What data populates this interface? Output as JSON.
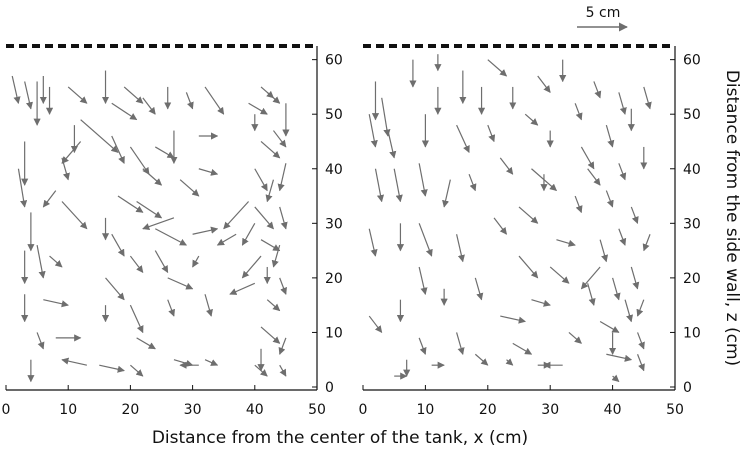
{
  "colors": {
    "arrow": "#6e6e6e",
    "axis": "#111111",
    "wall": "#111111"
  },
  "chart_data": [
    {
      "type": "quiver",
      "panel": "left",
      "xlabel": "",
      "ylabel": "",
      "xlim": [
        0,
        50
      ],
      "ylim": [
        0,
        63
      ],
      "xticks": [
        0,
        10,
        20,
        30,
        40,
        50
      ],
      "yticks": [
        0,
        10,
        20,
        30,
        40,
        50,
        60
      ],
      "wall_z": 62.5,
      "arrows": [
        [
          1,
          57,
          2,
          52
        ],
        [
          3,
          56,
          4,
          51
        ],
        [
          3,
          45,
          3,
          37
        ],
        [
          5,
          56,
          5,
          48
        ],
        [
          6,
          57,
          6,
          52
        ],
        [
          7,
          55,
          7,
          50
        ],
        [
          2,
          40,
          3,
          33
        ],
        [
          4,
          32,
          4,
          25
        ],
        [
          3,
          25,
          3,
          19
        ],
        [
          3,
          17,
          3,
          12
        ],
        [
          4,
          5,
          4,
          1
        ],
        [
          5,
          26,
          6,
          20
        ],
        [
          5,
          10,
          6,
          7
        ],
        [
          8,
          9,
          12,
          9
        ],
        [
          6,
          16,
          10,
          15
        ],
        [
          7,
          24,
          9,
          22
        ],
        [
          9,
          42,
          10,
          38
        ],
        [
          9,
          34,
          13,
          29
        ],
        [
          8,
          36,
          6,
          33
        ],
        [
          11,
          48,
          11,
          43
        ],
        [
          10,
          55,
          13,
          52
        ],
        [
          12,
          49,
          18,
          43
        ],
        [
          12,
          45,
          9,
          41
        ],
        [
          16,
          58,
          16,
          52
        ],
        [
          17,
          46,
          19,
          41
        ],
        [
          18,
          35,
          22,
          32
        ],
        [
          17,
          28,
          19,
          24
        ],
        [
          16,
          20,
          19,
          16
        ],
        [
          16,
          15,
          16,
          12
        ],
        [
          15,
          4,
          19,
          3
        ],
        [
          13,
          4,
          9,
          5
        ],
        [
          16,
          31,
          16,
          27
        ],
        [
          17,
          52,
          21,
          49
        ],
        [
          19,
          55,
          22,
          52
        ],
        [
          20,
          44,
          23,
          39
        ],
        [
          21,
          34,
          25,
          31
        ],
        [
          20,
          24,
          22,
          21
        ],
        [
          20,
          15,
          22,
          10
        ],
        [
          20,
          4,
          22,
          2
        ],
        [
          21,
          9,
          24,
          7
        ],
        [
          22,
          40,
          25,
          37
        ],
        [
          24,
          44,
          27,
          42
        ],
        [
          22,
          53,
          24,
          50
        ],
        [
          26,
          55,
          26,
          51
        ],
        [
          24,
          25,
          26,
          21
        ],
        [
          24,
          29,
          29,
          26
        ],
        [
          26,
          20,
          30,
          18
        ],
        [
          27,
          31,
          22,
          29
        ],
        [
          26,
          16,
          27,
          13
        ],
        [
          27,
          47,
          27,
          41
        ],
        [
          28,
          38,
          31,
          35
        ],
        [
          27,
          5,
          30,
          4
        ],
        [
          29,
          54,
          30,
          51
        ],
        [
          30,
          28,
          34,
          29
        ],
        [
          31,
          24,
          30,
          22
        ],
        [
          31,
          46,
          34,
          46
        ],
        [
          32,
          55,
          35,
          50
        ],
        [
          31,
          40,
          34,
          39
        ],
        [
          32,
          17,
          33,
          13
        ],
        [
          32,
          5,
          34,
          4
        ],
        [
          31,
          4,
          28,
          4
        ],
        [
          37,
          28,
          34,
          26
        ],
        [
          39,
          34,
          35,
          29
        ],
        [
          40,
          30,
          38,
          26
        ],
        [
          41,
          24,
          38,
          20
        ],
        [
          40,
          19,
          36,
          17
        ],
        [
          41,
          55,
          43,
          53
        ],
        [
          42,
          54,
          44,
          52
        ],
        [
          40,
          50,
          40,
          47
        ],
        [
          41,
          45,
          44,
          42
        ],
        [
          40,
          40,
          42,
          36
        ],
        [
          40,
          33,
          43,
          29
        ],
        [
          41,
          27,
          44,
          25
        ],
        [
          42,
          22,
          42,
          19
        ],
        [
          42,
          16,
          44,
          14
        ],
        [
          41,
          11,
          44,
          8
        ],
        [
          40,
          4,
          42,
          2
        ],
        [
          43,
          47,
          45,
          44
        ],
        [
          45,
          52,
          45,
          46
        ],
        [
          45,
          41,
          44,
          36
        ],
        [
          44,
          33,
          45,
          29
        ],
        [
          44,
          26,
          43,
          22
        ],
        [
          44,
          20,
          45,
          17
        ],
        [
          45,
          9,
          44,
          6
        ],
        [
          44,
          4,
          45,
          2
        ],
        [
          39,
          52,
          42,
          50
        ],
        [
          43,
          38,
          42,
          34
        ],
        [
          41,
          7,
          41,
          3
        ]
      ]
    },
    {
      "type": "quiver",
      "panel": "right",
      "xlabel": "Distance from the center of the tank, x (cm)",
      "ylabel": "Distance from the side wall, z (cm)",
      "xlim": [
        0,
        50
      ],
      "ylim": [
        0,
        63
      ],
      "xticks": [
        0,
        10,
        20,
        30,
        40,
        50
      ],
      "yticks": [
        0,
        10,
        20,
        30,
        40,
        50,
        60
      ],
      "wall_z": 62.5,
      "scale_label": "5 cm",
      "scale_length": 5,
      "arrows": [
        [
          1,
          50,
          2,
          44
        ],
        [
          2,
          56,
          2,
          49
        ],
        [
          3,
          53,
          4,
          46
        ],
        [
          2,
          40,
          3,
          34
        ],
        [
          1,
          29,
          2,
          24
        ],
        [
          1,
          13,
          3,
          10
        ],
        [
          4,
          47,
          5,
          42
        ],
        [
          5,
          40,
          6,
          34
        ],
        [
          6,
          30,
          6,
          25
        ],
        [
          6,
          16,
          6,
          12
        ],
        [
          7,
          5,
          7,
          2
        ],
        [
          8,
          60,
          8,
          55
        ],
        [
          9,
          41,
          10,
          35
        ],
        [
          9,
          30,
          11,
          24
        ],
        [
          9,
          22,
          10,
          17
        ],
        [
          9,
          9,
          10,
          6
        ],
        [
          5,
          2,
          7,
          2
        ],
        [
          10,
          50,
          10,
          44
        ],
        [
          11,
          4,
          13,
          4
        ],
        [
          12,
          55,
          12,
          50
        ],
        [
          12,
          61,
          12,
          58
        ],
        [
          13,
          18,
          13,
          15
        ],
        [
          14,
          38,
          13,
          33
        ],
        [
          15,
          48,
          17,
          43
        ],
        [
          15,
          28,
          16,
          23
        ],
        [
          15,
          10,
          16,
          6
        ],
        [
          16,
          58,
          16,
          52
        ],
        [
          17,
          39,
          18,
          36
        ],
        [
          18,
          20,
          19,
          16
        ],
        [
          18,
          6,
          20,
          4
        ],
        [
          19,
          55,
          19,
          50
        ],
        [
          20,
          48,
          21,
          45
        ],
        [
          21,
          31,
          23,
          28
        ],
        [
          22,
          42,
          24,
          39
        ],
        [
          22,
          13,
          26,
          12
        ],
        [
          23,
          5,
          24,
          4
        ],
        [
          24,
          55,
          24,
          51
        ],
        [
          25,
          24,
          28,
          20
        ],
        [
          25,
          33,
          28,
          30
        ],
        [
          26,
          50,
          28,
          48
        ],
        [
          27,
          16,
          30,
          15
        ],
        [
          28,
          57,
          30,
          54
        ],
        [
          28,
          4,
          30,
          4
        ],
        [
          29,
          39,
          29,
          36
        ],
        [
          30,
          47,
          30,
          44
        ],
        [
          31,
          27,
          34,
          26
        ],
        [
          32,
          60,
          32,
          56
        ],
        [
          33,
          10,
          35,
          8
        ],
        [
          34,
          52,
          35,
          49
        ],
        [
          34,
          35,
          35,
          32
        ],
        [
          35,
          44,
          37,
          40
        ],
        [
          36,
          19,
          37,
          15
        ],
        [
          37,
          56,
          38,
          53
        ],
        [
          38,
          27,
          39,
          23
        ],
        [
          39,
          48,
          40,
          44
        ],
        [
          39,
          36,
          40,
          33
        ],
        [
          40,
          20,
          41,
          16
        ],
        [
          40,
          10,
          40,
          6
        ],
        [
          40,
          2,
          41,
          1
        ],
        [
          41,
          54,
          42,
          50
        ],
        [
          41,
          41,
          42,
          38
        ],
        [
          41,
          29,
          42,
          26
        ],
        [
          42,
          16,
          43,
          12
        ],
        [
          43,
          51,
          43,
          47
        ],
        [
          43,
          22,
          44,
          18
        ],
        [
          43,
          33,
          44,
          30
        ],
        [
          44,
          6,
          45,
          3
        ],
        [
          45,
          55,
          46,
          51
        ],
        [
          45,
          44,
          45,
          40
        ],
        [
          44,
          10,
          45,
          7
        ],
        [
          46,
          28,
          45,
          25
        ],
        [
          38,
          22,
          35,
          18
        ],
        [
          36,
          40,
          38,
          37
        ],
        [
          30,
          22,
          33,
          19
        ],
        [
          27,
          40,
          31,
          36
        ],
        [
          38,
          12,
          41,
          10
        ],
        [
          39,
          6,
          43,
          5
        ],
        [
          20,
          60,
          23,
          57
        ],
        [
          24,
          8,
          27,
          6
        ],
        [
          32,
          4,
          29,
          4
        ],
        [
          45,
          16,
          44,
          13
        ]
      ]
    }
  ]
}
